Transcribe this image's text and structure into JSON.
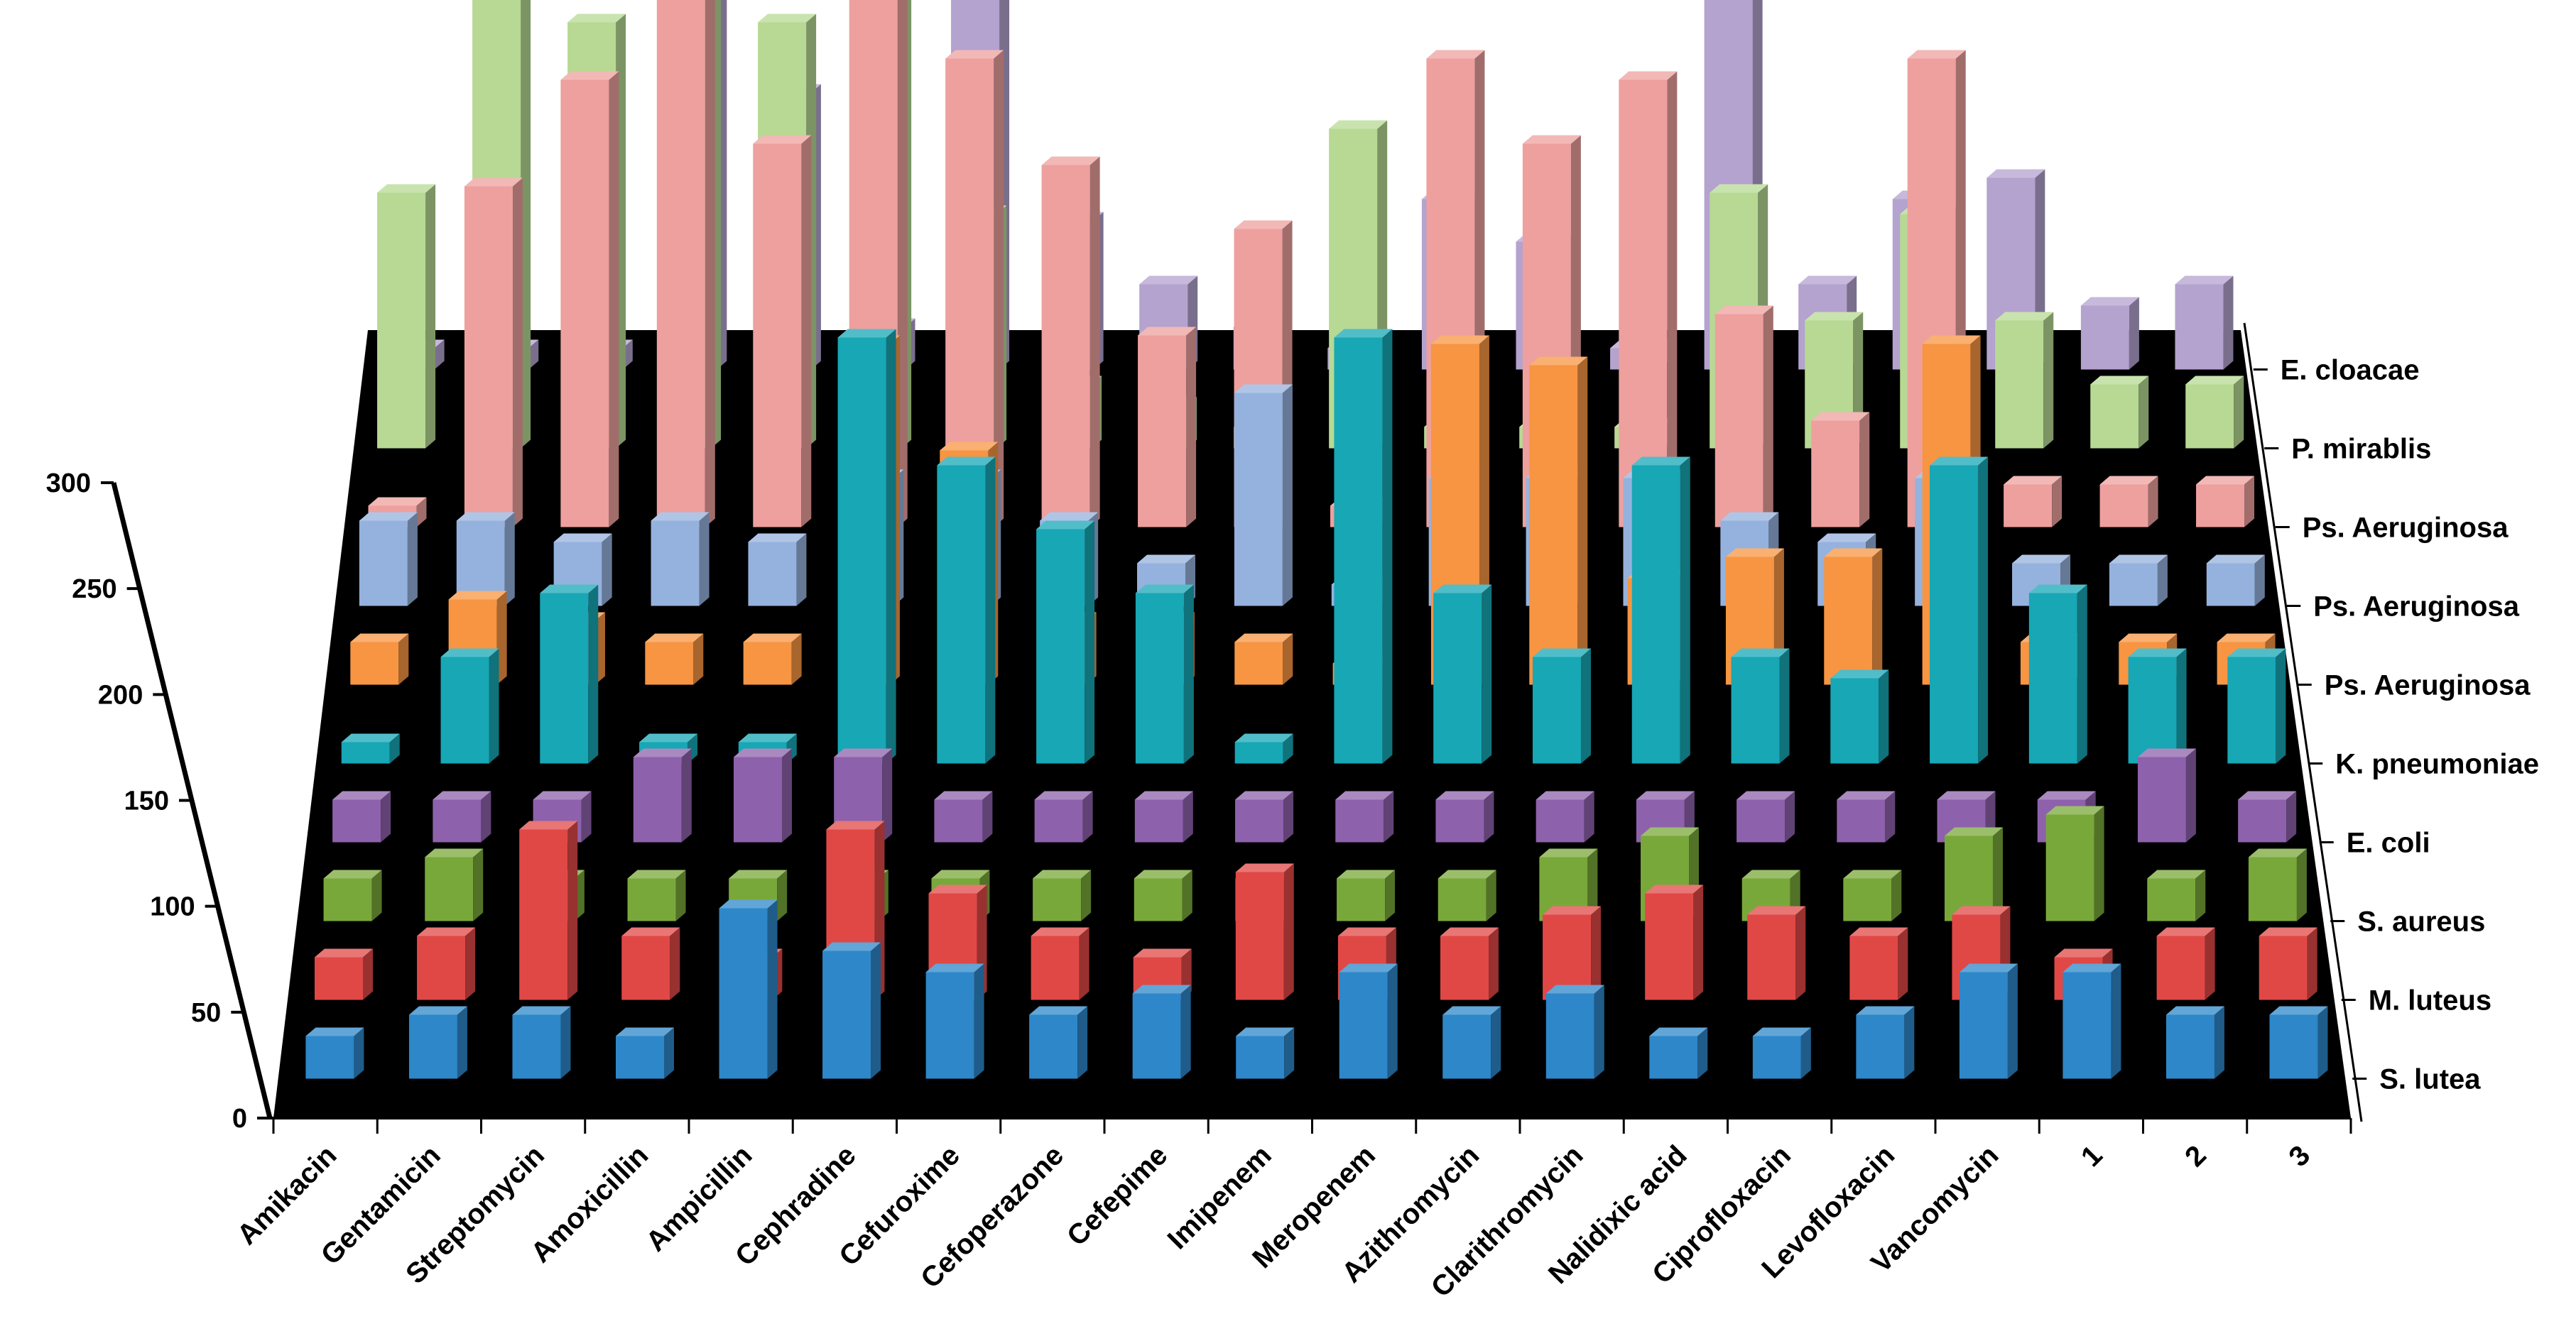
{
  "chart_data": {
    "type": "bar",
    "style": "3d-column",
    "title": "",
    "xlabel": "",
    "ylabel": "",
    "ylim": [
      0,
      300
    ],
    "y_ticks": [
      "0",
      "50",
      "100",
      "150",
      "200",
      "250",
      "300"
    ],
    "floor_color": "#000000",
    "categories": [
      "Amikacin",
      "Gentamicin",
      "Streptomycin",
      "Amoxicillin",
      "Ampicillin",
      "Cephradine",
      "Cefuroxime",
      "Cefoperazone",
      "Cefepime",
      "Imipenem",
      "Meropenem",
      "Azithromycin",
      "Clarithromycin",
      "Nalidixic acid",
      "Ciprofloxacin",
      "Levofloxacin",
      "Vancomycin",
      "1",
      "2",
      "3"
    ],
    "series": [
      {
        "name": "E. cloacae",
        "color": "#b4a2cf",
        "values": [
          10,
          10,
          10,
          220,
          130,
          20,
          230,
          70,
          40,
          20,
          10,
          80,
          60,
          10,
          220,
          40,
          80,
          90,
          30,
          40
        ]
      },
      {
        "name": "P. mirablis",
        "color": "#b7d993",
        "values": [
          120,
          270,
          200,
          290,
          200,
          290,
          110,
          30,
          20,
          10,
          150,
          10,
          10,
          10,
          120,
          60,
          110,
          60,
          30,
          30
        ]
      },
      {
        "name": "Ps. Aeruginosa",
        "color": "#eda09e",
        "values": [
          10,
          160,
          210,
          280,
          180,
          280,
          220,
          170,
          90,
          140,
          10,
          220,
          180,
          210,
          100,
          50,
          220,
          20,
          20,
          20
        ]
      },
      {
        "name": "Ps. Aeruginosa",
        "color": "#95b2de",
        "values": [
          40,
          40,
          30,
          40,
          30,
          60,
          60,
          40,
          20,
          100,
          10,
          60,
          60,
          60,
          40,
          30,
          60,
          20,
          20,
          20
        ]
      },
      {
        "name": "Ps. Aeruginosa",
        "color": "#f79542",
        "values": [
          20,
          40,
          30,
          20,
          20,
          160,
          110,
          30,
          30,
          20,
          10,
          160,
          150,
          50,
          60,
          60,
          160,
          20,
          20,
          20
        ]
      },
      {
        "name": "K. pneumoniae",
        "color": "#17a7b5",
        "values": [
          10,
          50,
          80,
          10,
          10,
          200,
          140,
          110,
          80,
          10,
          200,
          80,
          50,
          140,
          50,
          40,
          140,
          80,
          50,
          50
        ]
      },
      {
        "name": "E. coli",
        "color": "#8e61ac",
        "values": [
          20,
          20,
          20,
          40,
          40,
          40,
          20,
          20,
          20,
          20,
          20,
          20,
          20,
          20,
          20,
          20,
          20,
          20,
          40,
          20
        ]
      },
      {
        "name": "S. aureus",
        "color": "#79a83a",
        "values": [
          20,
          30,
          20,
          20,
          20,
          20,
          20,
          20,
          20,
          20,
          20,
          20,
          30,
          40,
          20,
          20,
          40,
          50,
          20,
          30
        ]
      },
      {
        "name": "M. luteus",
        "color": "#e04846",
        "values": [
          20,
          30,
          80,
          30,
          20,
          80,
          50,
          30,
          20,
          60,
          30,
          30,
          40,
          50,
          40,
          30,
          40,
          20,
          30,
          30
        ]
      },
      {
        "name": "S. lutea",
        "color": "#2d87c9",
        "values": [
          20,
          30,
          30,
          20,
          80,
          60,
          50,
          30,
          40,
          20,
          50,
          30,
          40,
          20,
          20,
          30,
          50,
          50,
          30,
          30
        ]
      }
    ]
  }
}
